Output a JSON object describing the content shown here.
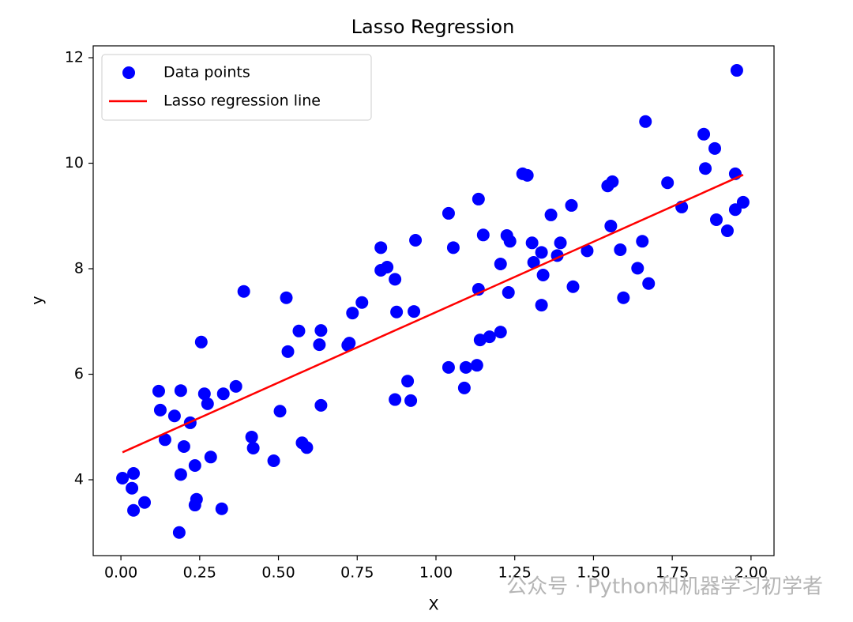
{
  "chart_data": {
    "type": "scatter",
    "title": "Lasso Regression",
    "x_label": "X",
    "y_label": "y",
    "watermark": "公众号 · Python和机器学习初学者",
    "xlim": [
      -0.088,
      2.073
    ],
    "ylim": [
      2.562,
      12.225
    ],
    "xticks": [
      {
        "value": 0,
        "label": "0.00"
      },
      {
        "value": 0.25,
        "label": "0.25"
      },
      {
        "value": 0.5,
        "label": "0.50"
      },
      {
        "value": 0.75,
        "label": "0.75"
      },
      {
        "value": 1,
        "label": "1.00"
      },
      {
        "value": 1.25,
        "label": "1.25"
      },
      {
        "value": 1.5,
        "label": "1.50"
      },
      {
        "value": 1.75,
        "label": "1.75"
      },
      {
        "value": 2,
        "label": "2.00"
      }
    ],
    "yticks": [
      4,
      6,
      8,
      10,
      12
    ],
    "legend": "upper left",
    "grid": false,
    "series": [
      {
        "name": "Data points",
        "type": "scatter",
        "color": "#0000ff",
        "x": [
          0.005,
          0.04,
          0.035,
          0.04,
          0.075,
          0.12,
          0.125,
          0.14,
          0.17,
          0.185,
          0.19,
          0.19,
          0.2,
          0.22,
          0.235,
          0.235,
          0.24,
          0.255,
          0.265,
          0.275,
          0.285,
          0.32,
          0.325,
          0.365,
          0.39,
          0.415,
          0.42,
          0.485,
          0.505,
          0.525,
          0.53,
          0.565,
          0.575,
          0.59,
          0.63,
          0.635,
          0.635,
          0.72,
          0.725,
          0.735,
          0.765,
          0.825,
          0.825,
          0.845,
          0.87,
          0.87,
          0.875,
          0.91,
          0.92,
          0.93,
          0.935,
          1.04,
          1.04,
          1.055,
          1.09,
          1.095,
          1.13,
          1.135,
          1.135,
          1.14,
          1.15,
          1.17,
          1.205,
          1.205,
          1.225,
          1.23,
          1.235,
          1.275,
          1.29,
          1.305,
          1.31,
          1.335,
          1.335,
          1.34,
          1.365,
          1.385,
          1.395,
          1.43,
          1.435,
          1.48,
          1.545,
          1.56,
          1.555,
          1.585,
          1.595,
          1.64,
          1.655,
          1.665,
          1.675,
          1.735,
          1.78,
          1.85,
          1.855,
          1.885,
          1.89,
          1.925,
          1.95,
          1.95,
          1.955,
          1.975
        ],
        "values": [
          4.03,
          4.12,
          3.84,
          3.42,
          3.57,
          5.68,
          5.32,
          4.76,
          5.21,
          3.0,
          4.1,
          5.69,
          4.63,
          5.08,
          4.27,
          3.52,
          3.63,
          6.61,
          5.63,
          5.44,
          4.43,
          3.45,
          5.63,
          5.77,
          7.57,
          4.81,
          4.6,
          4.36,
          5.3,
          7.45,
          6.43,
          6.82,
          4.7,
          4.61,
          6.56,
          6.83,
          5.41,
          6.55,
          6.59,
          7.16,
          7.36,
          8.4,
          7.97,
          8.03,
          5.52,
          7.8,
          7.18,
          5.87,
          5.5,
          7.19,
          8.54,
          9.05,
          6.13,
          8.4,
          5.74,
          6.13,
          6.17,
          9.32,
          7.61,
          6.65,
          8.64,
          6.71,
          8.09,
          6.8,
          8.63,
          7.55,
          8.52,
          9.8,
          9.77,
          8.49,
          8.12,
          8.31,
          7.31,
          7.88,
          9.02,
          8.25,
          8.49,
          9.2,
          7.66,
          8.34,
          9.57,
          9.65,
          8.81,
          8.36,
          7.45,
          8.01,
          8.52,
          10.79,
          7.72,
          9.63,
          9.17,
          10.55,
          9.9,
          10.28,
          8.93,
          8.72,
          9.12,
          9.8,
          11.76,
          9.26
        ]
      },
      {
        "name": "Lasso regression line",
        "type": "line",
        "color": "#ff0000",
        "x": [
          0.005,
          1.975
        ],
        "values": [
          4.52,
          9.78
        ]
      }
    ]
  }
}
